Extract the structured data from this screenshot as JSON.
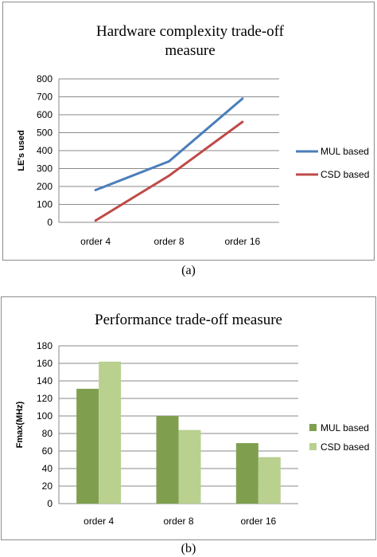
{
  "captions": {
    "a": "(a)",
    "b": "(b)"
  },
  "chart_data": [
    {
      "type": "line",
      "title_lines": [
        "Hardware complexity trade-off",
        "measure"
      ],
      "xlabel": "",
      "ylabel": "LE's used",
      "categories": [
        "order 4",
        "order 8",
        "order 16"
      ],
      "ylim": [
        0,
        800
      ],
      "yticks": [
        0,
        100,
        200,
        300,
        400,
        500,
        600,
        700,
        800
      ],
      "grid": true,
      "legend_position": "right",
      "series": [
        {
          "name": "MUL based",
          "color": "#4a7ebb",
          "values": [
            180,
            340,
            690
          ]
        },
        {
          "name": "CSD based",
          "color": "#be4b48",
          "values": [
            10,
            260,
            560
          ]
        }
      ]
    },
    {
      "type": "bar",
      "title_lines": [
        "Performance trade-off measure"
      ],
      "xlabel": "",
      "ylabel": "Fmax(MHz)",
      "categories": [
        "order 4",
        "order 8",
        "order 16"
      ],
      "ylim": [
        0,
        180
      ],
      "yticks": [
        0,
        20,
        40,
        60,
        80,
        100,
        120,
        140,
        160,
        180
      ],
      "grid": true,
      "legend_position": "right",
      "series": [
        {
          "name": "MUL based",
          "color": "#7f9f4f",
          "values": [
            131,
            100,
            69
          ]
        },
        {
          "name": "CSD based",
          "color": "#b9d08f",
          "values": [
            162,
            84,
            53
          ]
        }
      ]
    }
  ]
}
